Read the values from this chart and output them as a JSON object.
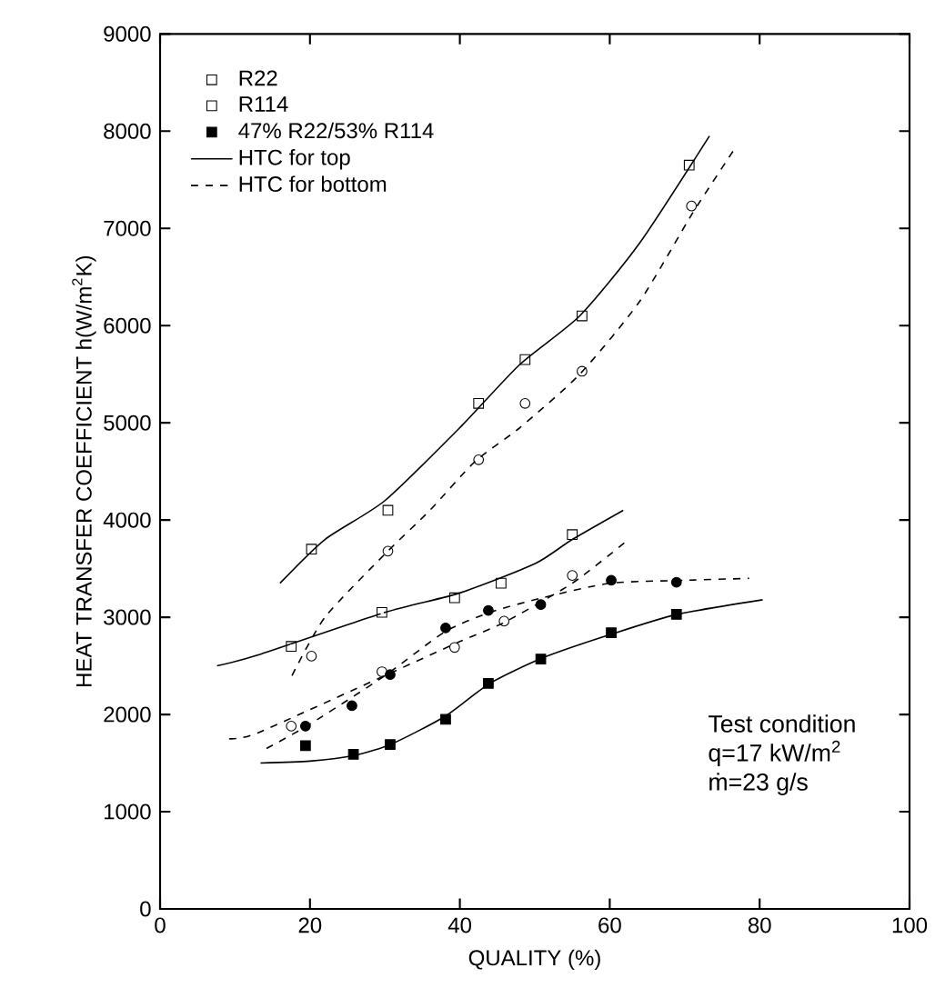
{
  "chart_data": {
    "type": "scatter",
    "xlabel": "QUALITY (%)",
    "ylabel": "HEAT TRANSFER COEFFICIENT h(W/m$^{2}$K)",
    "xlim": [
      0,
      100
    ],
    "xticks": [
      0,
      20,
      40,
      60,
      80,
      100
    ],
    "ylim": [
      0,
      9000
    ],
    "yticks": [
      0,
      1000,
      2000,
      3000,
      4000,
      5000,
      6000,
      7000,
      8000,
      9000
    ],
    "legend": "top left",
    "grid": false,
    "annotations": [
      "Test condition",
      "q=17 kW/m$^{2}$",
      "ṁ=23 g/s"
    ],
    "series": [
      {
        "name": "R22",
        "marker": "square",
        "color": "#000000",
        "x": [
          20.2,
          30.4,
          42.5,
          48.7,
          56.3,
          70.6
        ],
        "values": [
          3700,
          4100,
          5200,
          5650,
          6100,
          7650
        ]
      },
      {
        "name": "R114",
        "marker": "square-dot",
        "color": "#000000",
        "x": [
          17.5,
          29.6,
          39.3,
          45.5,
          55.0
        ],
        "values": [
          2700,
          3050,
          3200,
          3350,
          3850
        ]
      },
      {
        "name": "47% R22/53% R114",
        "marker": "square-filled",
        "color": "#000000",
        "x": [
          19.4,
          25.8,
          30.7,
          38.1,
          43.8,
          50.8,
          60.2,
          68.9
        ],
        "values": [
          1680,
          1590,
          1690,
          1950,
          2320,
          2570,
          2840,
          3030
        ]
      },
      {
        "name": "HTC for top",
        "type": "line",
        "line_style": "solid",
        "color": "#000000",
        "x": [
          16,
          22,
          30,
          40,
          48,
          56,
          64,
          73.3
        ],
        "values": [
          3350,
          3800,
          4200,
          4950,
          5600,
          6100,
          6850,
          7950
        ]
      },
      {
        "name": "HTC for bottom",
        "type": "line",
        "line_style": "dashed",
        "color": "#000000",
        "x": [
          17.6,
          22,
          30,
          36,
          42,
          48,
          56,
          64,
          71,
          76.5
        ],
        "values": [
          2400,
          3000,
          3650,
          4100,
          4600,
          4950,
          5500,
          6250,
          7150,
          7800
        ]
      },
      {
        "marker": "circle",
        "color": "#000000",
        "x": [
          20.2,
          30.4,
          42.5,
          48.7,
          56.3,
          70.9
        ],
        "values": [
          2600,
          3680,
          4620,
          5200,
          5530,
          7230
        ]
      },
      {
        "marker": "circle-dot",
        "color": "#000000",
        "x": [
          17.5,
          29.6,
          39.3,
          45.9,
          55.0
        ],
        "values": [
          1880,
          2440,
          2690,
          2960,
          3430
        ]
      },
      {
        "marker": "circle-filled",
        "color": "#000000",
        "x": [
          19.4,
          25.6,
          30.7,
          38.1,
          43.8,
          50.8,
          60.2,
          68.9
        ],
        "values": [
          1880,
          2090,
          2410,
          2890,
          3070,
          3130,
          3380,
          3360
        ]
      },
      {
        "type": "line",
        "line_style": "solid",
        "color": "#000000",
        "x": [
          7.6,
          13,
          30,
          40,
          50,
          55,
          61.8
        ],
        "values": [
          2500,
          2610,
          3050,
          3250,
          3550,
          3800,
          4100
        ]
      },
      {
        "type": "line",
        "line_style": "dashed",
        "color": "#000000",
        "x": [
          9.2,
          13,
          30,
          40,
          46,
          55,
          62.2
        ],
        "values": [
          1750,
          1810,
          2400,
          2750,
          2950,
          3350,
          3780
        ]
      },
      {
        "type": "line",
        "line_style": "dashed",
        "color": "#000000",
        "x": [
          14.2,
          20,
          30,
          38,
          44,
          51,
          60,
          70,
          78.6
        ],
        "values": [
          1650,
          1900,
          2400,
          2850,
          3050,
          3200,
          3350,
          3380,
          3400
        ]
      },
      {
        "type": "line",
        "line_style": "solid",
        "color": "#000000",
        "x": [
          13.4,
          20,
          26,
          31,
          38,
          44,
          51,
          60,
          69,
          80.4
        ],
        "values": [
          1500,
          1520,
          1580,
          1700,
          1980,
          2320,
          2580,
          2820,
          3030,
          3180
        ]
      }
    ]
  }
}
